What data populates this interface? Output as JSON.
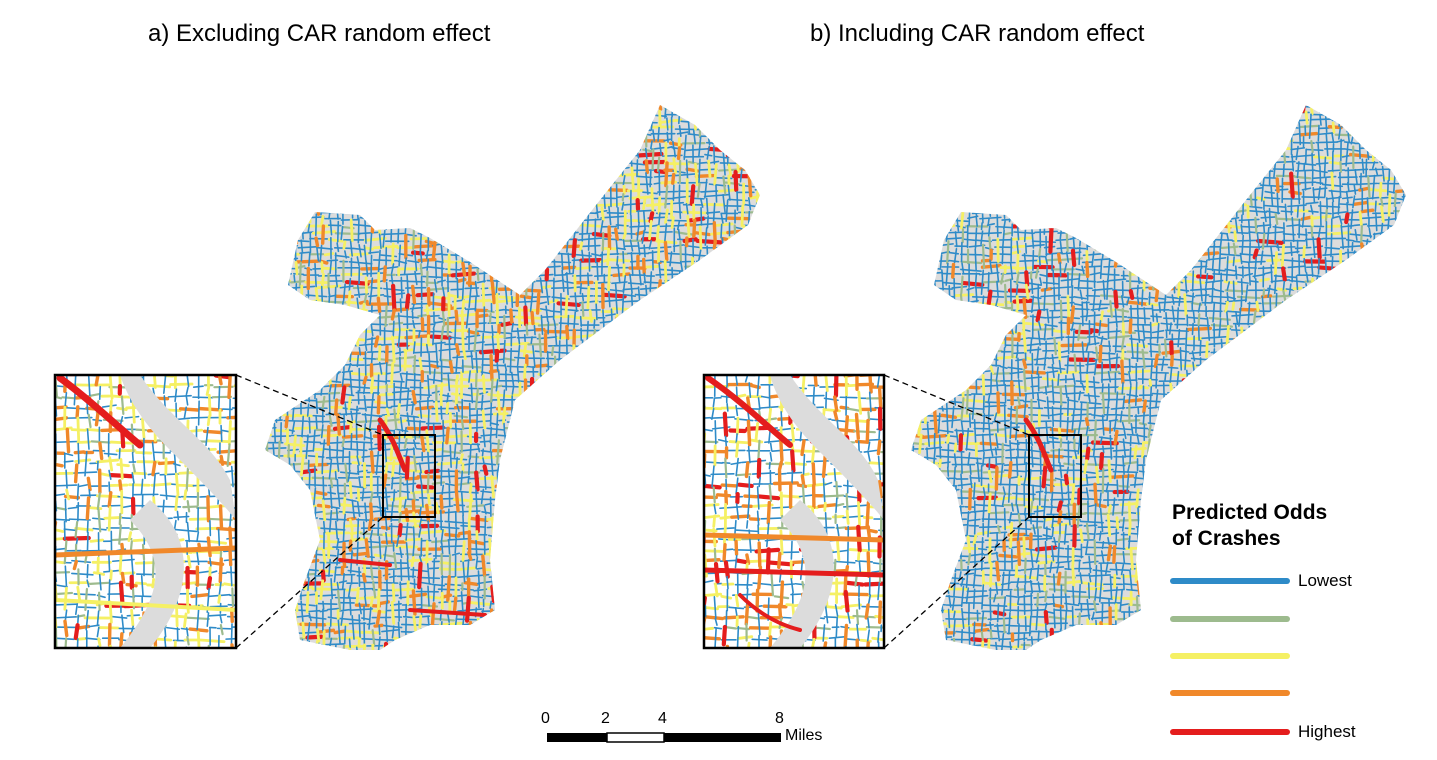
{
  "panels": [
    {
      "title": "a) Excluding CAR random effect"
    },
    {
      "title": "b) Including CAR random effect"
    }
  ],
  "legend": {
    "title_line1": "Predicted Odds",
    "title_line2": "of Crashes",
    "items": [
      {
        "label": "Lowest",
        "color": "#2e8bc8"
      },
      {
        "label": "",
        "color": "#9dbb8e"
      },
      {
        "label": "",
        "color": "#f5f064"
      },
      {
        "label": "",
        "color": "#f0882a"
      },
      {
        "label": "Highest",
        "color": "#e41d1d"
      }
    ]
  },
  "scale_bar": {
    "ticks": [
      "0",
      "2",
      "4",
      "8"
    ],
    "unit": "Miles"
  },
  "colors": {
    "background_land": "#dcdcdc",
    "road_low": "#2e8bc8",
    "road_midlow": "#9dbb8e",
    "road_mid": "#f5f064",
    "road_midhigh": "#f0882a",
    "road_high": "#e41d1d"
  }
}
